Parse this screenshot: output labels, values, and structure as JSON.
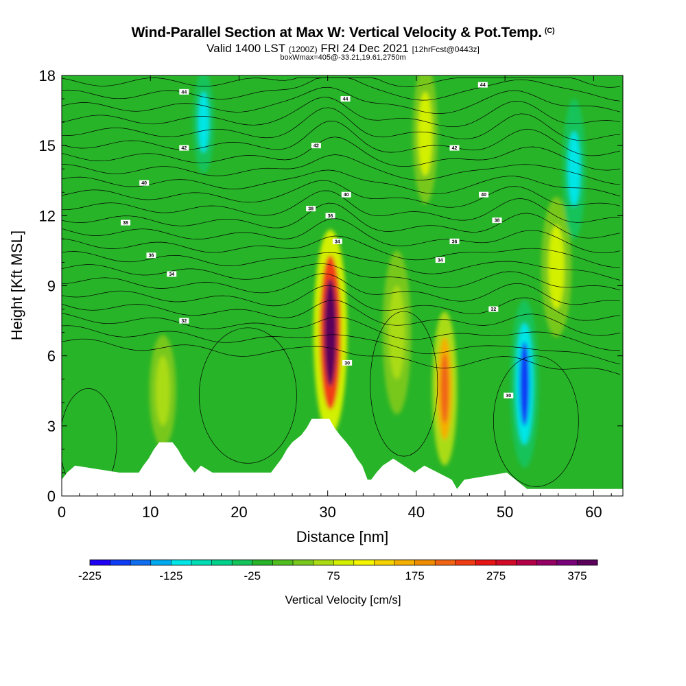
{
  "header": {
    "title": "Wind-Parallel Section at Max W: Vertical Velocity & Pot.Temp.",
    "copyright": "(C)",
    "valid_prefix": "Valid 1400 LST",
    "valid_utc": "(1200Z)",
    "valid_date": "FRI 24 Dec 2021",
    "forecast": "[12hrFcst@0443z]",
    "box_info": "boxWmax=405@-33.21,19.61,2750m"
  },
  "chart_data": {
    "type": "heatmap",
    "title": "Wind-Parallel Section at Max W: Vertical Velocity & Pot.Temp.",
    "xlabel": "Distance [nm]",
    "ylabel": "Height [Kft MSL]",
    "xlim": [
      0,
      63.3
    ],
    "ylim": [
      0,
      18
    ],
    "x_ticks": [
      0,
      10,
      20,
      30,
      40,
      50,
      60
    ],
    "y_ticks": [
      0,
      3,
      6,
      9,
      12,
      15,
      18
    ],
    "background_value": -15,
    "colorbar": {
      "label": "Vertical Velocity [cm/s]",
      "ticks": [
        -225,
        -125,
        -25,
        75,
        175,
        275,
        375
      ],
      "min": -225,
      "max": 400,
      "step": 25,
      "colors": [
        "#1f00f5",
        "#0f3cf5",
        "#0f6ef0",
        "#00aaf0",
        "#00e6e6",
        "#00dcb4",
        "#00d28c",
        "#14c35a",
        "#28b428",
        "#50be1e",
        "#78c81e",
        "#aadc14",
        "#d2f000",
        "#f5f500",
        "#f5d200",
        "#f5af00",
        "#f08c00",
        "#f06414",
        "#f03c14",
        "#e61414",
        "#d20a28",
        "#b40046",
        "#960064",
        "#780078",
        "#5a005a"
      ]
    },
    "features": [
      {
        "name": "updraft-core",
        "x": 30.3,
        "y": 7.0,
        "value": 405
      },
      {
        "name": "updraft-secondary",
        "x": 43.2,
        "y": 4.6,
        "value": 220
      },
      {
        "name": "downdraft-core",
        "x": 52.2,
        "y": 4.8,
        "value": -190
      },
      {
        "name": "updraft-upper",
        "x": 55.8,
        "y": 9.8,
        "value": 80
      },
      {
        "name": "updraft-left",
        "x": 11.4,
        "y": 4.5,
        "value": 65
      },
      {
        "name": "updraft-mid",
        "x": 37.8,
        "y": 7.0,
        "value": 60
      },
      {
        "name": "updraft-top",
        "x": 41.0,
        "y": 15.5,
        "value": 80
      },
      {
        "name": "downdraft-top",
        "x": 16.0,
        "y": 16.0,
        "value": -110
      },
      {
        "name": "downdraft-upper",
        "x": 57.8,
        "y": 14.0,
        "value": -110
      }
    ],
    "theta_contours": {
      "levels_k": [
        24,
        26,
        28,
        30,
        32,
        34,
        36,
        38,
        40,
        42,
        44
      ],
      "labels": [
        {
          "text": "44",
          "x": 13.8,
          "y": 17.3
        },
        {
          "text": "44",
          "x": 32.0,
          "y": 17.0
        },
        {
          "text": "44",
          "x": 47.5,
          "y": 17.6
        },
        {
          "text": "42",
          "x": 13.8,
          "y": 14.9
        },
        {
          "text": "42",
          "x": 28.7,
          "y": 15.0
        },
        {
          "text": "42",
          "x": 44.3,
          "y": 14.9
        },
        {
          "text": "40",
          "x": 9.3,
          "y": 13.4
        },
        {
          "text": "40",
          "x": 32.1,
          "y": 12.9
        },
        {
          "text": "40",
          "x": 47.6,
          "y": 12.9
        },
        {
          "text": "38",
          "x": 7.2,
          "y": 11.7
        },
        {
          "text": "38",
          "x": 28.1,
          "y": 12.3
        },
        {
          "text": "38",
          "x": 49.1,
          "y": 11.8
        },
        {
          "text": "36",
          "x": 30.3,
          "y": 12.0
        },
        {
          "text": "36",
          "x": 44.3,
          "y": 10.9
        },
        {
          "text": "36",
          "x": 10.1,
          "y": 10.3
        },
        {
          "text": "34",
          "x": 31.1,
          "y": 10.9
        },
        {
          "text": "34",
          "x": 42.7,
          "y": 10.1
        },
        {
          "text": "34",
          "x": 12.4,
          "y": 9.5
        },
        {
          "text": "32",
          "x": 13.8,
          "y": 7.5
        },
        {
          "text": "32",
          "x": 48.7,
          "y": 8.0
        },
        {
          "text": "30",
          "x": 32.2,
          "y": 5.7
        },
        {
          "text": "30",
          "x": 50.4,
          "y": 4.3
        }
      ]
    },
    "terrain_kft": [
      {
        "x": 0,
        "h": 0.7
      },
      {
        "x": 0.6,
        "h": 1.0
      },
      {
        "x": 1.5,
        "h": 1.3
      },
      {
        "x": 6.5,
        "h": 1.0
      },
      {
        "x": 8.7,
        "h": 1.0
      },
      {
        "x": 9.2,
        "h": 1.3
      },
      {
        "x": 9.8,
        "h": 1.6
      },
      {
        "x": 10.4,
        "h": 2.0
      },
      {
        "x": 11.0,
        "h": 2.3
      },
      {
        "x": 12.5,
        "h": 2.3
      },
      {
        "x": 13.1,
        "h": 2.0
      },
      {
        "x": 13.7,
        "h": 1.6
      },
      {
        "x": 14.3,
        "h": 1.3
      },
      {
        "x": 15.0,
        "h": 1.0
      },
      {
        "x": 15.7,
        "h": 1.3
      },
      {
        "x": 17.0,
        "h": 1.0
      },
      {
        "x": 23.6,
        "h": 1.0
      },
      {
        "x": 24.2,
        "h": 1.3
      },
      {
        "x": 24.8,
        "h": 1.6
      },
      {
        "x": 25.4,
        "h": 2.0
      },
      {
        "x": 26.0,
        "h": 2.3
      },
      {
        "x": 27.0,
        "h": 2.6
      },
      {
        "x": 27.6,
        "h": 2.9
      },
      {
        "x": 28.2,
        "h": 3.3
      },
      {
        "x": 30.2,
        "h": 3.3
      },
      {
        "x": 30.8,
        "h": 2.9
      },
      {
        "x": 31.4,
        "h": 2.6
      },
      {
        "x": 32.1,
        "h": 2.3
      },
      {
        "x": 32.7,
        "h": 2.0
      },
      {
        "x": 33.3,
        "h": 1.6
      },
      {
        "x": 33.9,
        "h": 1.3
      },
      {
        "x": 34.5,
        "h": 0.7
      },
      {
        "x": 34.9,
        "h": 0.7
      },
      {
        "x": 35.5,
        "h": 1.0
      },
      {
        "x": 36.2,
        "h": 1.3
      },
      {
        "x": 37.4,
        "h": 1.6
      },
      {
        "x": 38.6,
        "h": 1.3
      },
      {
        "x": 39.8,
        "h": 1.0
      },
      {
        "x": 40.9,
        "h": 1.3
      },
      {
        "x": 44.0,
        "h": 0.7
      },
      {
        "x": 44.6,
        "h": 0.3
      },
      {
        "x": 45.4,
        "h": 0.7
      },
      {
        "x": 50.2,
        "h": 1.0
      },
      {
        "x": 52.5,
        "h": 0.3
      },
      {
        "x": 63.3,
        "h": 0.3
      }
    ]
  }
}
